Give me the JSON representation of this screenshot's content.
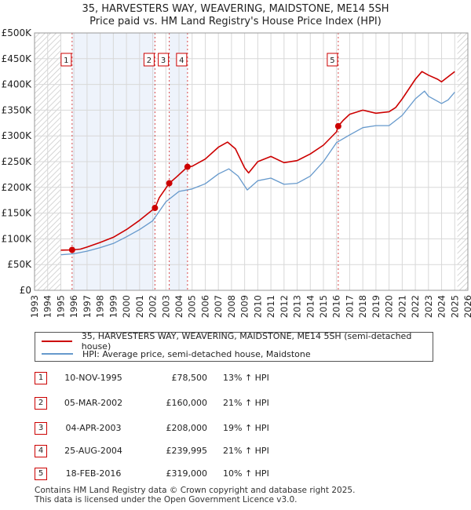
{
  "title_line1": "35, HARVESTERS WAY, WEAVERING, MAIDSTONE, ME14 5SH",
  "title_line2": "Price paid vs. HM Land Registry's House Price Index (HPI)",
  "legend": {
    "red_label": "35, HARVESTERS WAY, WEAVERING, MAIDSTONE, ME14 5SH (semi-detached house)",
    "blue_label": "HPI: Average price, semi-detached house, Maidstone"
  },
  "colors": {
    "red": "#cc0000",
    "blue": "#6699cc",
    "band": "#eef3fb",
    "grid": "#d8d8d8"
  },
  "transactions": [
    {
      "n": "1",
      "date": "10-NOV-1995",
      "price": "£78,500",
      "hpi": "13% ↑ HPI"
    },
    {
      "n": "2",
      "date": "05-MAR-2002",
      "price": "£160,000",
      "hpi": "21% ↑ HPI"
    },
    {
      "n": "3",
      "date": "04-APR-2003",
      "price": "£208,000",
      "hpi": "19% ↑ HPI"
    },
    {
      "n": "4",
      "date": "25-AUG-2004",
      "price": "£239,995",
      "hpi": "21% ↑ HPI"
    },
    {
      "n": "5",
      "date": "18-FEB-2016",
      "price": "£319,000",
      "hpi": "10% ↑ HPI"
    }
  ],
  "footer": {
    "line1": "Contains HM Land Registry data © Crown copyright and database right 2025.",
    "line2": "This data is licensed under the Open Government Licence v3.0."
  },
  "chart_data": {
    "type": "line",
    "title": "35, HARVESTERS WAY, WEAVERING, MAIDSTONE, ME14 5SH — Price paid vs. HM Land Registry's House Price Index (HPI)",
    "xlabel": "",
    "ylabel": "",
    "xlim": [
      1993,
      2026
    ],
    "ylim": [
      0,
      500000
    ],
    "x_ticks": [
      1993,
      1994,
      1995,
      1996,
      1997,
      1998,
      1999,
      2000,
      2001,
      2002,
      2003,
      2004,
      2005,
      2006,
      2007,
      2008,
      2009,
      2010,
      2011,
      2012,
      2013,
      2014,
      2015,
      2016,
      2017,
      2018,
      2019,
      2020,
      2021,
      2022,
      2023,
      2024,
      2025,
      2026
    ],
    "y_ticks": [
      0,
      50000,
      100000,
      150000,
      200000,
      250000,
      300000,
      350000,
      400000,
      450000,
      500000
    ],
    "y_tick_labels": [
      "£0",
      "£50K",
      "£100K",
      "£150K",
      "£200K",
      "£250K",
      "£300K",
      "£350K",
      "£400K",
      "£450K",
      "£500K"
    ],
    "hatched_ranges": [
      [
        1993,
        1995.0
      ],
      [
        2025.2,
        2026
      ]
    ],
    "series": [
      {
        "name": "35, HARVESTERS WAY, WEAVERING, MAIDSTONE, ME14 5SH (semi-detached house)",
        "color": "#cc0000",
        "x": [
          1995.0,
          1995.86,
          1996.5,
          1997,
          1998,
          1999,
          2000,
          2001,
          2002.17,
          2002.5,
          2003.26,
          2003.8,
          2004.65,
          2005,
          2006,
          2007,
          2007.7,
          2008.3,
          2009,
          2009.3,
          2010,
          2011,
          2012,
          2013,
          2014,
          2015,
          2016.0,
          2016.13,
          2016.5,
          2017,
          2018,
          2019,
          2020,
          2020.5,
          2021,
          2022,
          2022.5,
          2023,
          2023.7,
          2024,
          2024.5,
          2025.0
        ],
        "values": [
          78000,
          78500,
          80000,
          84000,
          93000,
          103000,
          118000,
          136000,
          160000,
          180000,
          208000,
          220000,
          239995,
          241000,
          255000,
          278000,
          288000,
          275000,
          238000,
          228000,
          250000,
          260000,
          248000,
          252000,
          265000,
          282000,
          308000,
          319000,
          330000,
          342000,
          350000,
          344000,
          347000,
          355000,
          372000,
          410000,
          425000,
          418000,
          410000,
          405000,
          415000,
          425000
        ]
      },
      {
        "name": "HPI: Average price, semi-detached house, Maidstone",
        "color": "#6699cc",
        "x": [
          1995.0,
          1996,
          1997,
          1998,
          1999,
          2000,
          2001,
          2002,
          2003,
          2004,
          2005,
          2006,
          2007,
          2007.8,
          2008.5,
          2009.2,
          2010,
          2011,
          2012,
          2013,
          2014,
          2015,
          2016,
          2017,
          2018,
          2019,
          2020,
          2021,
          2022,
          2022.7,
          2023,
          2024,
          2024.5,
          2025.0
        ],
        "values": [
          69000,
          71000,
          76000,
          83000,
          91000,
          104000,
          118000,
          135000,
          172000,
          192000,
          197000,
          207000,
          226000,
          236000,
          222000,
          195000,
          213000,
          218000,
          206000,
          208000,
          222000,
          250000,
          287000,
          302000,
          316000,
          320000,
          320000,
          340000,
          372000,
          387000,
          377000,
          363000,
          370000,
          385000
        ]
      }
    ],
    "sales": [
      {
        "n": "1",
        "x": 1995.86,
        "value": 78500
      },
      {
        "n": "2",
        "x": 2002.17,
        "value": 160000
      },
      {
        "n": "3",
        "x": 2003.26,
        "value": 208000
      },
      {
        "n": "4",
        "x": 2004.65,
        "value": 239995
      },
      {
        "n": "5",
        "x": 2016.13,
        "value": 319000
      }
    ]
  }
}
